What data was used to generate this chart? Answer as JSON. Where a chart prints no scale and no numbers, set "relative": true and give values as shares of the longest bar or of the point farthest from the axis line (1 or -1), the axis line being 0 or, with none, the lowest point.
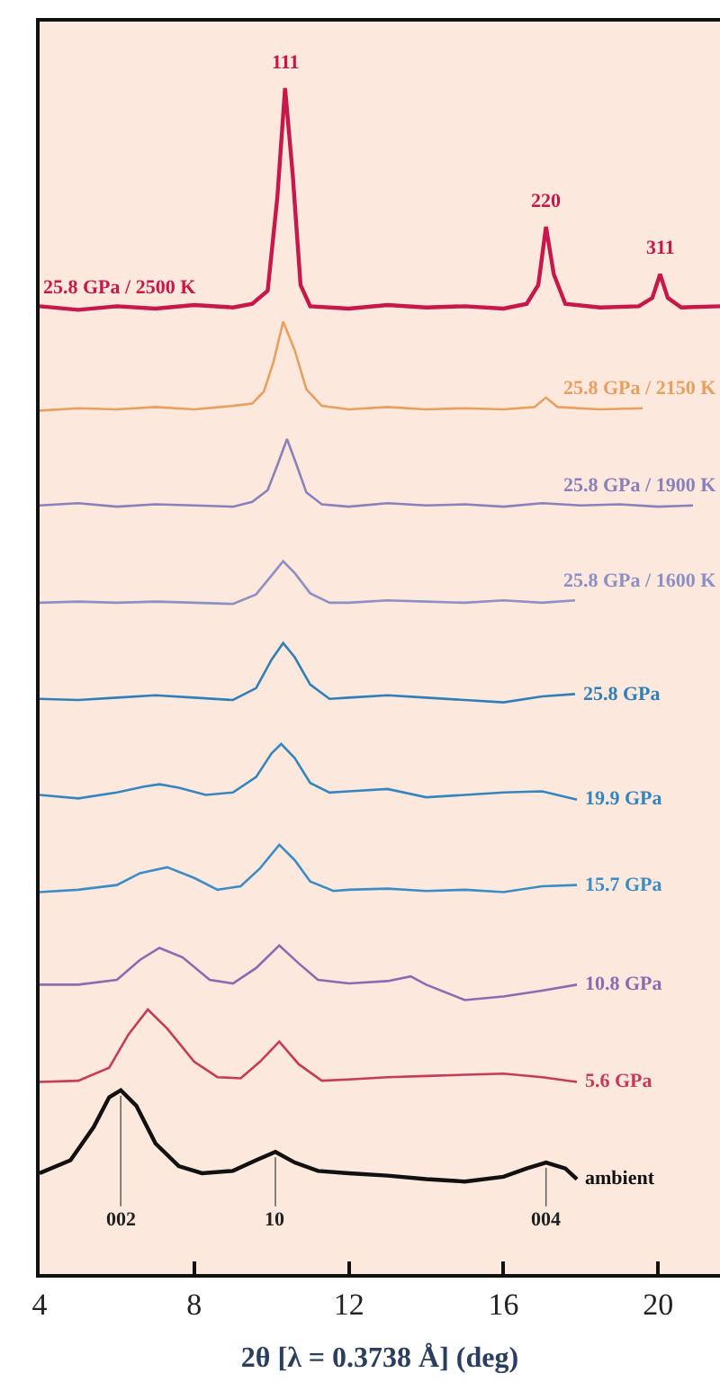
{
  "chart_data": {
    "type": "line",
    "relative": true,
    "xlabel": "2θ [λ = 0.3738 Å] (deg)",
    "xlim": [
      4,
      21.6
    ],
    "xticks": [
      4,
      8,
      12,
      16,
      20
    ],
    "tick_labels": "x",
    "grid": false,
    "legend": false,
    "series": [
      {
        "name": "25.8 GPa / 2500 K",
        "color": "#c8174a",
        "x": [
          4,
          5,
          6,
          7,
          8,
          9,
          9.5,
          9.9,
          10.15,
          10.35,
          10.55,
          10.75,
          11,
          12,
          13,
          14,
          15,
          16,
          16.6,
          16.9,
          17.1,
          17.3,
          17.6,
          18.5,
          19.5,
          19.85,
          20.05,
          20.25,
          20.6,
          21.6
        ],
        "values": [
          0.816,
          0.813,
          0.816,
          0.814,
          0.817,
          0.815,
          0.818,
          0.829,
          0.908,
          1.0,
          0.926,
          0.834,
          0.816,
          0.814,
          0.817,
          0.815,
          0.816,
          0.814,
          0.818,
          0.834,
          0.883,
          0.843,
          0.818,
          0.815,
          0.816,
          0.823,
          0.843,
          0.823,
          0.815,
          0.816
        ]
      },
      {
        "name": "25.8 GPa / 2150 K",
        "color": "#e8a060",
        "x": [
          4,
          5,
          6,
          7,
          8,
          9,
          9.5,
          9.8,
          10.05,
          10.3,
          10.6,
          10.9,
          11.3,
          12,
          13,
          14,
          15,
          16,
          16.8,
          17.1,
          17.4,
          18.5,
          19.6
        ],
        "values": [
          0.728,
          0.73,
          0.729,
          0.731,
          0.729,
          0.732,
          0.734,
          0.744,
          0.769,
          0.803,
          0.779,
          0.746,
          0.732,
          0.729,
          0.731,
          0.729,
          0.73,
          0.729,
          0.731,
          0.739,
          0.731,
          0.729,
          0.73
        ]
      },
      {
        "name": "25.8 GPa / 1900 K",
        "color": "#8a80bc",
        "x": [
          4,
          5,
          6,
          7,
          8,
          9,
          9.5,
          9.9,
          10.15,
          10.4,
          10.65,
          10.9,
          11.3,
          12,
          13,
          14,
          15,
          16,
          17,
          18,
          19,
          20,
          20.9
        ],
        "values": [
          0.648,
          0.65,
          0.647,
          0.649,
          0.648,
          0.647,
          0.651,
          0.661,
          0.682,
          0.704,
          0.682,
          0.659,
          0.649,
          0.647,
          0.65,
          0.648,
          0.649,
          0.647,
          0.65,
          0.648,
          0.649,
          0.647,
          0.648
        ]
      },
      {
        "name": "25.8 GPa / 1600 K",
        "color": "#8c90c4",
        "x": [
          4,
          5,
          6,
          7,
          8,
          9,
          9.6,
          10.0,
          10.3,
          10.6,
          11.0,
          11.5,
          12,
          13,
          14,
          15,
          16,
          17,
          17.85
        ],
        "values": [
          0.566,
          0.567,
          0.566,
          0.567,
          0.566,
          0.565,
          0.573,
          0.589,
          0.601,
          0.591,
          0.574,
          0.566,
          0.566,
          0.568,
          0.567,
          0.566,
          0.568,
          0.566,
          0.568
        ]
      },
      {
        "name": "25.8 GPa",
        "color": "#2f80ba",
        "x": [
          4,
          5,
          6,
          7,
          8,
          9,
          9.6,
          10.0,
          10.3,
          10.6,
          11.0,
          11.5,
          12,
          13,
          14,
          15,
          16,
          17,
          17.85
        ],
        "values": [
          0.485,
          0.484,
          0.486,
          0.488,
          0.486,
          0.484,
          0.494,
          0.518,
          0.532,
          0.52,
          0.497,
          0.485,
          0.486,
          0.488,
          0.486,
          0.484,
          0.482,
          0.487,
          0.489
        ]
      },
      {
        "name": "19.9 GPa",
        "color": "#3386c0",
        "x": [
          4,
          5,
          6,
          6.7,
          7.1,
          7.6,
          8.3,
          9,
          9.6,
          10.0,
          10.25,
          10.6,
          11.0,
          11.5,
          12,
          13,
          14,
          15,
          16,
          17,
          17.9
        ],
        "values": [
          0.404,
          0.401,
          0.406,
          0.411,
          0.413,
          0.41,
          0.404,
          0.406,
          0.419,
          0.439,
          0.447,
          0.435,
          0.414,
          0.406,
          0.407,
          0.409,
          0.402,
          0.404,
          0.406,
          0.407,
          0.4
        ]
      },
      {
        "name": "15.7 GPa",
        "color": "#3a8ec8",
        "x": [
          4,
          5,
          6,
          6.6,
          7.3,
          8,
          8.6,
          9.2,
          9.7,
          10.2,
          10.6,
          11.0,
          11.6,
          12,
          13,
          14,
          15,
          16,
          17,
          17.9
        ],
        "values": [
          0.322,
          0.324,
          0.328,
          0.338,
          0.343,
          0.334,
          0.324,
          0.327,
          0.342,
          0.362,
          0.349,
          0.331,
          0.323,
          0.324,
          0.325,
          0.323,
          0.324,
          0.322,
          0.327,
          0.328
        ]
      },
      {
        "name": "10.8 GPa",
        "color": "#8a6cb2",
        "x": [
          4,
          5,
          6,
          6.6,
          7.1,
          7.7,
          8.4,
          9.0,
          9.6,
          10.2,
          10.7,
          11.2,
          12,
          13,
          13.6,
          14,
          15,
          16,
          17,
          17.9
        ],
        "values": [
          0.244,
          0.244,
          0.248,
          0.265,
          0.275,
          0.267,
          0.248,
          0.245,
          0.258,
          0.277,
          0.262,
          0.248,
          0.245,
          0.247,
          0.251,
          0.244,
          0.231,
          0.234,
          0.239,
          0.244
        ]
      },
      {
        "name": "5.6 GPa",
        "color": "#c83a5a",
        "x": [
          4,
          5,
          5.8,
          6.3,
          6.8,
          7.3,
          8,
          8.6,
          9.2,
          9.7,
          10.2,
          10.7,
          11.3,
          12,
          13,
          14,
          15,
          16,
          17,
          17.9
        ],
        "values": [
          0.162,
          0.163,
          0.174,
          0.202,
          0.223,
          0.207,
          0.179,
          0.166,
          0.165,
          0.179,
          0.196,
          0.177,
          0.163,
          0.164,
          0.166,
          0.167,
          0.168,
          0.169,
          0.166,
          0.162
        ]
      },
      {
        "name": "ambient",
        "color": "#111111",
        "x": [
          4,
          4.8,
          5.4,
          5.8,
          6.1,
          6.5,
          7.0,
          7.6,
          8.2,
          9,
          9.6,
          10.1,
          10.6,
          11.2,
          12,
          13,
          14,
          15,
          16,
          16.6,
          17.1,
          17.6,
          17.9
        ],
        "values": [
          0.085,
          0.096,
          0.124,
          0.149,
          0.155,
          0.142,
          0.11,
          0.091,
          0.085,
          0.087,
          0.096,
          0.103,
          0.094,
          0.087,
          0.085,
          0.083,
          0.08,
          0.078,
          0.082,
          0.089,
          0.094,
          0.089,
          0.08
        ]
      }
    ],
    "annotations": [
      {
        "text": "111",
        "x": 10.35,
        "y": 1.0
      },
      {
        "text": "220",
        "x": 17.1,
        "y": 0.883
      },
      {
        "text": "311",
        "x": 20.05,
        "y": 0.843
      },
      {
        "text": "002",
        "x": 6.1,
        "y": 0.155
      },
      {
        "text": "10",
        "x": 10.1,
        "y": 0.103
      },
      {
        "text": "004",
        "x": 17.1,
        "y": 0.094
      }
    ]
  }
}
